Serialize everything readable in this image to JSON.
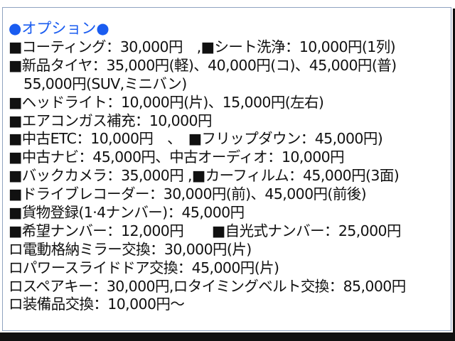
{
  "title": "●オプション●",
  "accent_color": "#1a5cf0",
  "lines": [
    "■コーティング：30,000円　,■シート洗浄：10,000円(1列)",
    "■新品タイヤ：35,000円(軽)、40,000円(コ)、45,000円(普)",
    "55,000円(SUV,ミニバン)",
    "■ヘッドライト：10,000円(片)、15,000円(左右)",
    "■エアコンガス補充：10,000円",
    "■中古ETC：10,000円　、　■フリップダウン：45,000円)",
    "■中古ナビ：45,000円、中古オーディオ：10,000円",
    "■バックカメラ：35,000円 ,■カーフィルム：45,000円(3面)",
    "■ドライブレコーダー：30,000円(前)、45,000円(前後)",
    "■貨物登録(1·4ナンバー)：45,000円",
    "■希望ナンバー：12,000円　　■自光式ナンバー：25,000円",
    "ロ電動格納ミラー交換：30,000円(片)",
    "ロパワースライドドア交換：45,000円(片)",
    "ロスペアキー：30,000円,ロタイミングベルト交換：85,000円",
    "ロ装備品交換：10,000円～"
  ]
}
